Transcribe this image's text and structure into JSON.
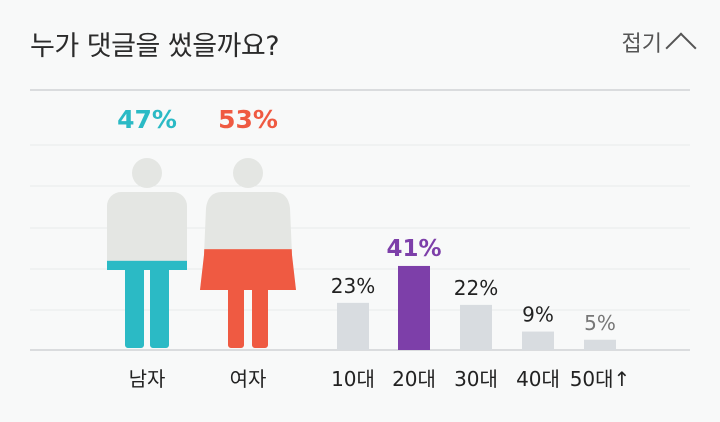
{
  "header": {
    "title": "누가 댓글을 썼을까요?",
    "collapse_label": "접기"
  },
  "icons": {
    "collapse": "chevron-up-icon"
  },
  "colors": {
    "male": "#2bbac5",
    "female": "#ef5a42",
    "figure_base": "#e4e6e3",
    "bar_default": "#d8dce0",
    "bar_highlight": "#7d3fa9",
    "label_dark": "#222222",
    "label_faint": "#777777",
    "grid": "#e9ebec",
    "axis": "#cfd3d6"
  },
  "chart_data": [
    {
      "type": "pie",
      "categories": [
        "남자",
        "여자"
      ],
      "values": [
        47,
        53
      ],
      "value_labels": [
        "47%",
        "53%"
      ]
    },
    {
      "type": "bar",
      "categories": [
        "10대",
        "20대",
        "30대",
        "40대",
        "50대↑"
      ],
      "values": [
        23,
        41,
        22,
        9,
        5
      ],
      "value_labels": [
        "23%",
        "41%",
        "22%",
        "9%",
        "5%"
      ],
      "highlight_index": 1,
      "ylim": [
        0,
        100
      ],
      "grid": true
    }
  ]
}
